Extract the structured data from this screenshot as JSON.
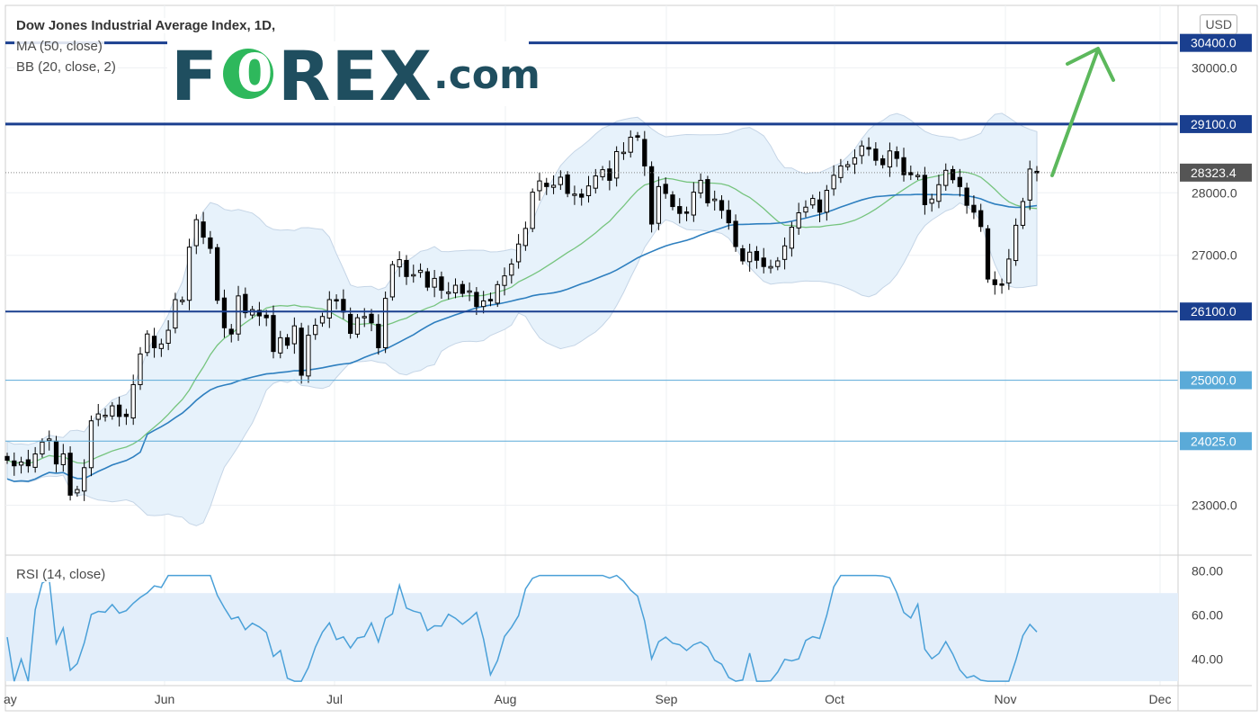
{
  "chart_data": {
    "type": "candlestick",
    "title": "Dow Jones Industrial Average Index, 1D,",
    "indicators": [
      "MA (50, close)",
      "BB (20, close, 2)"
    ],
    "currency": "USD",
    "x_labels": [
      "ay",
      "Jun",
      "Jul",
      "Aug",
      "Sep",
      "Oct",
      "Nov",
      "Dec"
    ],
    "price_axis": {
      "ticks": [
        23000.0,
        24025.0,
        25000.0,
        26100.0,
        27000.0,
        28000.0,
        29100.0,
        30000.0,
        30400.0
      ],
      "tick_labels": [
        "23000.0",
        "27000.0",
        "28000.0",
        "30000.0"
      ],
      "ylim": [
        22200,
        31000
      ],
      "current_price": "28323.4"
    },
    "horizontal_levels": [
      {
        "value": 30400.0,
        "label": "30400.0",
        "style": "thick"
      },
      {
        "value": 29100.0,
        "label": "29100.0",
        "style": "thick"
      },
      {
        "value": 26100.0,
        "label": "26100.0",
        "style": "medium"
      },
      {
        "value": 25000.0,
        "label": "25000.0",
        "style": "thin"
      },
      {
        "value": 24025.0,
        "label": "24025.0",
        "style": "thin"
      }
    ],
    "closes": [
      23720,
      23630,
      23690,
      23630,
      23820,
      24010,
      24060,
      23660,
      23820,
      23160,
      23250,
      23600,
      24350,
      24460,
      24440,
      24590,
      24420,
      24420,
      24930,
      25420,
      25740,
      25520,
      25580,
      25800,
      26290,
      26280,
      27130,
      27570,
      27290,
      27110,
      26280,
      25840,
      25740,
      26350,
      26080,
      26130,
      26030,
      26000,
      25460,
      25680,
      25560,
      25870,
      25080,
      25720,
      25880,
      26020,
      26290,
      26270,
      26090,
      25750,
      26000,
      26020,
      25920,
      25520,
      26310,
      26850,
      26930,
      26660,
      26690,
      26760,
      26490,
      26630,
      26440,
      26410,
      26520,
      26390,
      26430,
      26180,
      26270,
      26270,
      26530,
      26670,
      26860,
      27180,
      27430,
      28010,
      28190,
      28100,
      28120,
      28250,
      27990,
      27980,
      27930,
      28110,
      28270,
      28370,
      28200,
      28660,
      28650,
      28890,
      28890,
      28430,
      27500,
      28100,
      27990,
      27780,
      27670,
      27680,
      28010,
      28200,
      27840,
      27900,
      27720,
      27520,
      27140,
      26910,
      27050,
      26920,
      26820,
      26820,
      26910,
      27150,
      27450,
      27680,
      27770,
      27910,
      27690,
      28040,
      28280,
      28430,
      28450,
      28560,
      28750,
      28700,
      28520,
      28450,
      28670,
      28550,
      28290,
      28290,
      28280,
      27810,
      27900,
      28130,
      28360,
      28210,
      28100,
      27800,
      27690,
      27460,
      26620,
      26530,
      26520,
      26940,
      27480,
      27860,
      28380,
      28320
    ],
    "rsi": {
      "label": "RSI (14, close)",
      "ticks": [
        40.0,
        60.0,
        80.0
      ],
      "tick_labels": [
        "40.00",
        "60.00",
        "80.00"
      ],
      "band": [
        30,
        70
      ]
    },
    "colors": {
      "up": "#ffffff",
      "down": "#000000",
      "ma50": "#2e7fbf",
      "bb_mid": "#76c47e",
      "bb_fill": "#e7f2fb",
      "level": "#1a3f8f",
      "arrow": "#5cb85c",
      "rsi_line": "#4aa0d8"
    }
  },
  "header": {
    "title": "Dow Jones Industrial Average Index, 1D,",
    "ma_label": "MA (50, close)",
    "bb_label": "BB (20, close, 2)",
    "rsi_label": "RSI (14, close)",
    "usd_label": "USD",
    "current_price_label": "28323.4"
  },
  "logo": {
    "brand": "FOREX",
    "brand_letters_before": "F",
    "brand_letter_o": "0",
    "brand_letters_after": "REX",
    "suffix": ".com"
  }
}
